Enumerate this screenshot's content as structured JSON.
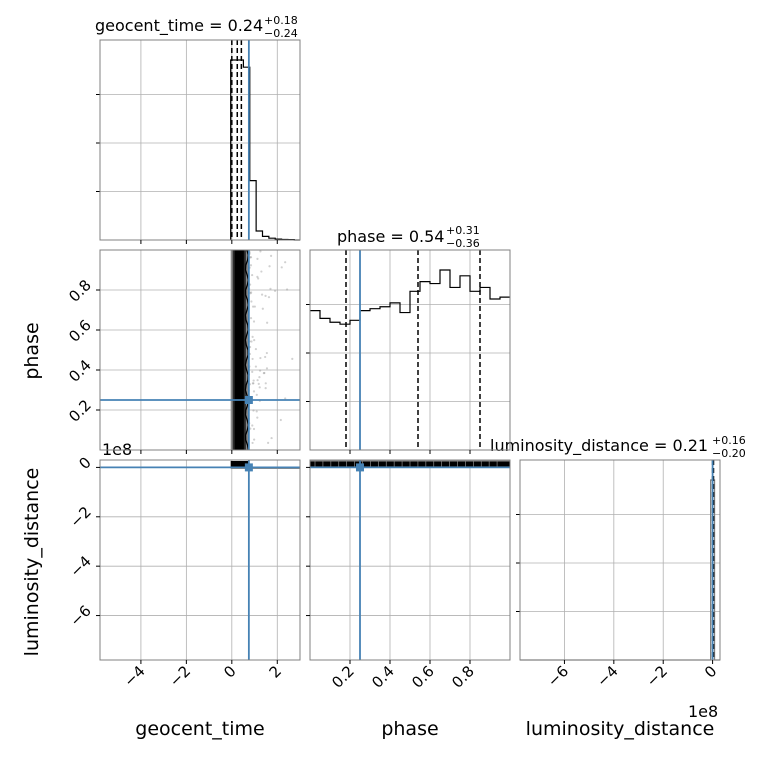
{
  "colors": {
    "truth": "#4682b4",
    "hist": "#000000",
    "grid": "#b0b0b0",
    "frame": "#808080",
    "density_dark": "#2a2a2a",
    "density_mid": "#8c8c8c",
    "scatter": "#9a9a9a"
  },
  "chart_data": {
    "type": "corner",
    "parameters": [
      "geocent_time",
      "phase",
      "luminosity_distance"
    ],
    "truths": {
      "geocent_time": 0.75,
      "phase": 0.25,
      "luminosity_distance": 0.0
    },
    "titles": {
      "geocent_time": {
        "prefix": "geocent_time = ",
        "value": "0.24",
        "plus": "+0.18",
        "minus": "−0.24"
      },
      "phase": {
        "prefix": "phase = ",
        "value": "0.54",
        "plus": "+0.31",
        "minus": "−0.36"
      },
      "luminosity_distance": {
        "prefix": "luminosity_distance = ",
        "value": "0.21",
        "plus": "+0.16",
        "minus": "−0.20"
      }
    },
    "axis_labels": {
      "geocent_time": "geocent_time",
      "phase": "phase",
      "luminosity_distance": "luminosity_distance"
    },
    "ranges": {
      "geocent_time": [
        -5.8,
        3.0
      ],
      "phase": [
        0.0,
        1.0
      ],
      "luminosity_distance": [
        -780000000,
        30000000
      ]
    },
    "ticks": {
      "geocent_time": [
        {
          "v": -4,
          "label": "−4"
        },
        {
          "v": -2,
          "label": "−2"
        },
        {
          "v": 0,
          "label": "0"
        },
        {
          "v": 2,
          "label": "2"
        }
      ],
      "phase": [
        {
          "v": 0.2,
          "label": "0.2"
        },
        {
          "v": 0.4,
          "label": "0.4"
        },
        {
          "v": 0.6,
          "label": "0.6"
        },
        {
          "v": 0.8,
          "label": "0.8"
        }
      ],
      "luminosity_distance": [
        {
          "v": -600000000,
          "label": "−6"
        },
        {
          "v": -400000000,
          "label": "−4"
        },
        {
          "v": -200000000,
          "label": "−2"
        },
        {
          "v": 0,
          "label": "0"
        }
      ]
    },
    "offset_text": "1e8",
    "hist_geocent_time": {
      "edges": [
        -0.05,
        0.23,
        0.51,
        0.79,
        1.07,
        1.35,
        1.63,
        1.91,
        2.19,
        2.47,
        2.75,
        3.0
      ],
      "counts": [
        1.0,
        1.0,
        0.96,
        0.33,
        0.05,
        0.02,
        0.01,
        0.005,
        0.003,
        0.002,
        0.0
      ],
      "quantiles": [
        0.0,
        0.24,
        0.42
      ]
    },
    "hist_phase": {
      "edges": [
        0.0,
        0.05,
        0.1,
        0.15,
        0.2,
        0.25,
        0.3,
        0.35,
        0.4,
        0.45,
        0.5,
        0.55,
        0.6,
        0.65,
        0.7,
        0.75,
        0.8,
        0.85,
        0.9,
        0.95,
        1.0
      ],
      "counts": [
        0.72,
        0.68,
        0.66,
        0.65,
        0.67,
        0.72,
        0.73,
        0.74,
        0.76,
        0.71,
        0.82,
        0.87,
        0.86,
        0.93,
        0.84,
        0.9,
        0.82,
        0.84,
        0.78,
        0.79
      ],
      "quantiles": [
        0.18,
        0.54,
        0.85
      ]
    },
    "hist_luminosity_distance": {
      "edges": [
        -780000000,
        -8000000,
        0,
        8000000,
        30000000
      ],
      "counts": [
        0.0,
        1.0,
        1.0,
        0.0
      ],
      "quantiles": [
        0.0,
        0.21,
        0.37
      ]
    }
  }
}
